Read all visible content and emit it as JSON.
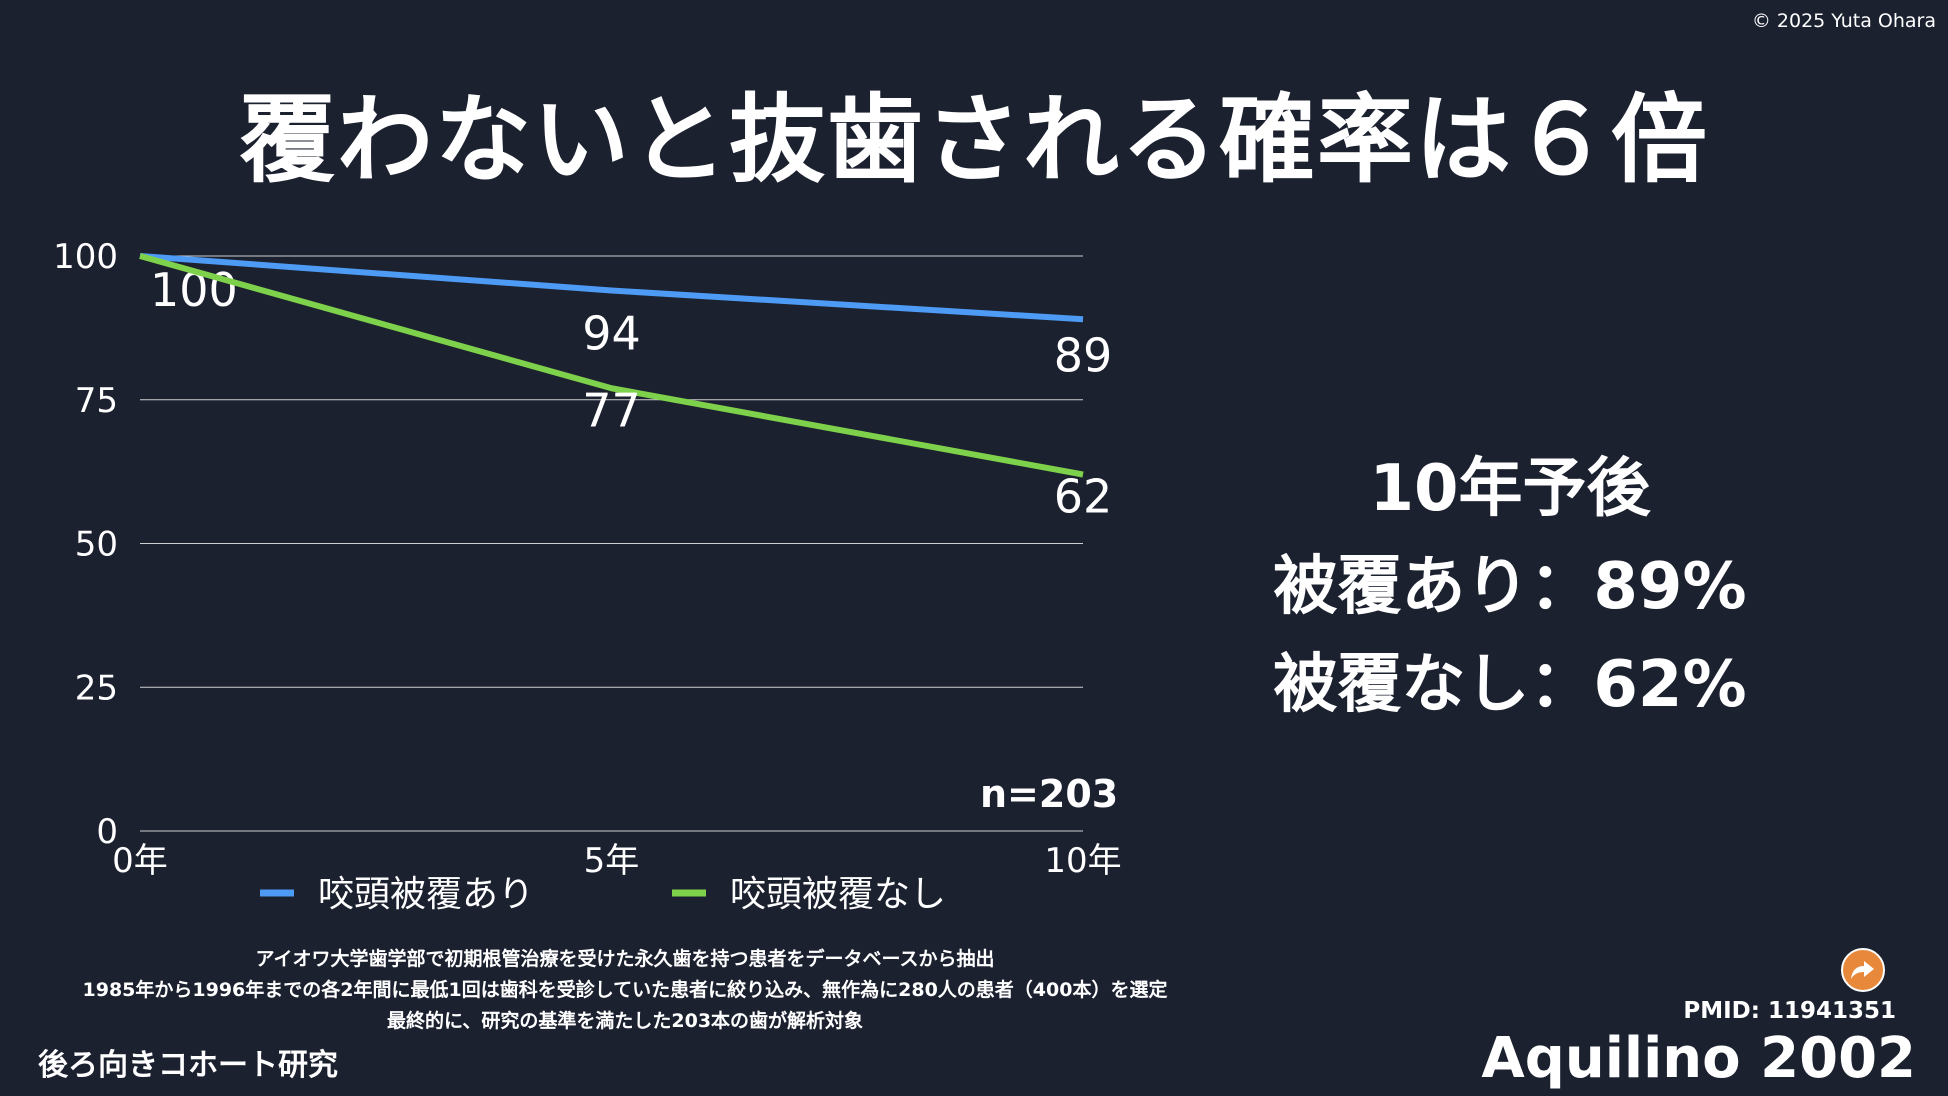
{
  "copyright": "© 2025 Yuta Ohara",
  "title": "覆わないと抜歯される確率は６倍",
  "chart_data": {
    "type": "line",
    "categories": [
      "0年",
      "5年",
      "10年"
    ],
    "series": [
      {
        "name": "咬頭被覆あり",
        "values": [
          100,
          94,
          89
        ],
        "color": "#4d9bf5"
      },
      {
        "name": "咬頭被覆なし",
        "values": [
          100,
          77,
          62
        ],
        "color": "#7ed14a"
      }
    ],
    "yticks": [
      0,
      25,
      50,
      75,
      100
    ],
    "ylim": [
      0,
      100
    ],
    "grid": true,
    "legend": "bottom",
    "annotation": "n=203"
  },
  "summary": {
    "heading": "10年予後",
    "line1": "被覆あり：89%",
    "line2": "被覆なし：62%"
  },
  "notes": [
    "アイオワ大学歯学部で初期根管治療を受けた永久歯を持つ患者をデータベースから抽出",
    "1985年から1996年までの各2年間に最低1回は歯科を受診していた患者に絞り込み、無作為に280人の患者（400本）を選定",
    "最終的に、研究の基準を満たした203本の歯が解析対象"
  ],
  "study_design": "後ろ向きコホート研究",
  "pmid": "PMID: 11941351",
  "citation": "Aquilino 2002",
  "icons": {
    "share": "share-arrow-icon",
    "share_color": "#e8883a"
  }
}
